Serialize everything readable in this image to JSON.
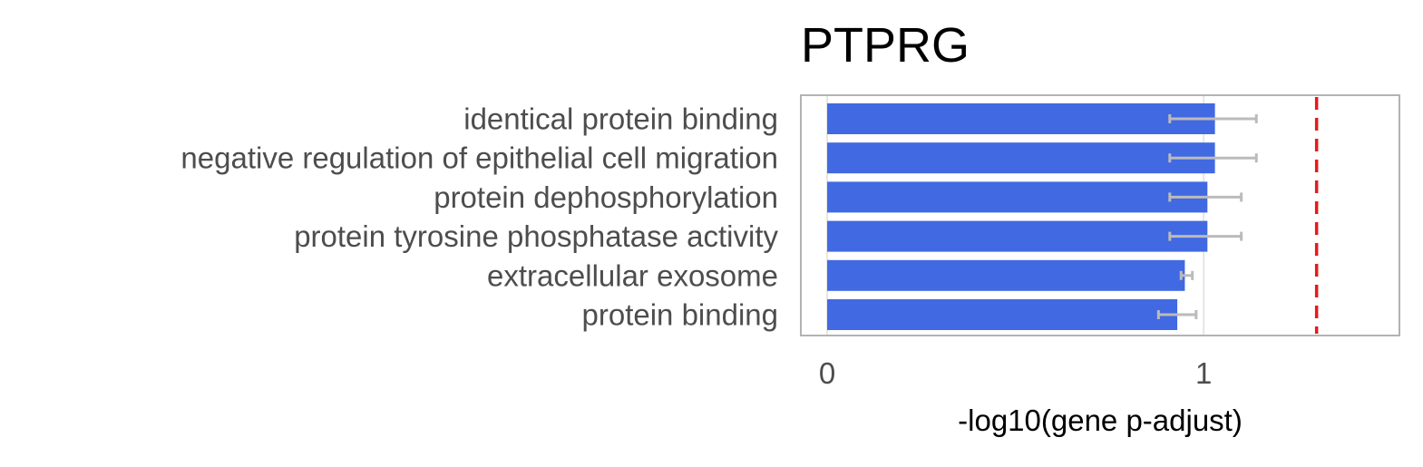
{
  "chart_data": {
    "type": "bar",
    "orientation": "horizontal",
    "title": "PTPRG",
    "xlabel": "-log10(gene p-adjust)",
    "ylabel": "",
    "categories": [
      "identical protein binding",
      "negative regulation of epithelial cell migration",
      "protein dephosphorylation",
      "protein tyrosine phosphatase activity",
      "extracellular exosome",
      "protein binding"
    ],
    "values": [
      1.03,
      1.03,
      1.01,
      1.01,
      0.95,
      0.93
    ],
    "error_low": [
      0.91,
      0.91,
      0.91,
      0.91,
      0.94,
      0.88
    ],
    "error_high": [
      1.14,
      1.14,
      1.1,
      1.1,
      0.97,
      0.98
    ],
    "threshold": 1.3,
    "xlim": [
      -0.07,
      1.52
    ],
    "xticks": [
      {
        "value": 0,
        "label": "0"
      },
      {
        "value": 1,
        "label": "1"
      }
    ],
    "grid": true,
    "legend": "none",
    "colors": {
      "bar": "#4169e1",
      "error_bar": "#bbbbbb",
      "threshold_line": "#e41a1c",
      "frame": "#b3b3b3",
      "grid": "#e6e6e6",
      "label_text": "#4d4d4d",
      "title_text": "#000000"
    }
  }
}
